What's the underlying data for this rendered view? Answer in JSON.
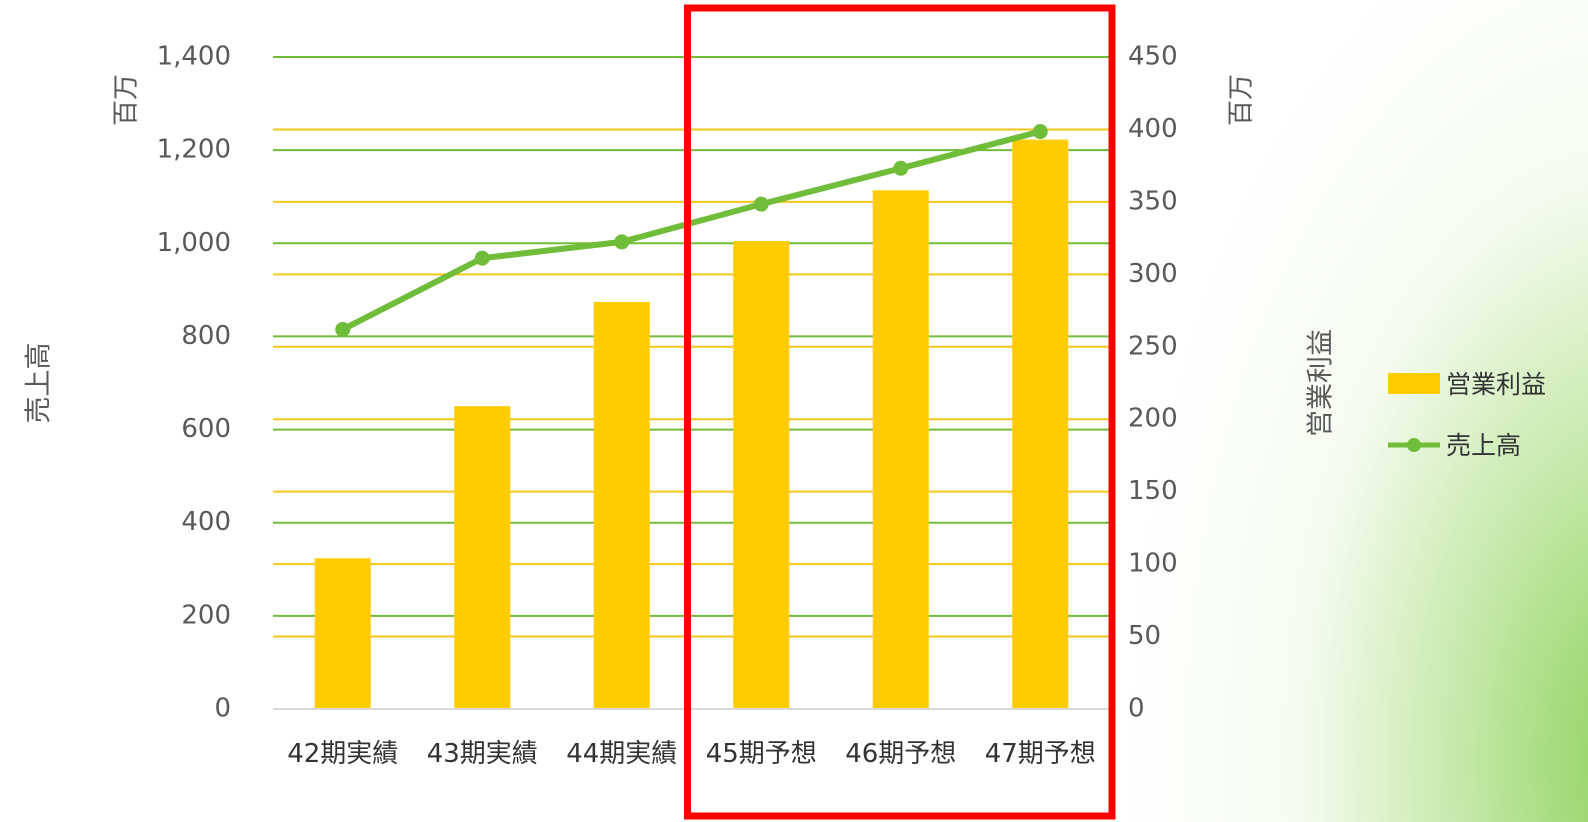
{
  "chart_data": {
    "type": "bar+line",
    "categories": [
      "42期実績",
      "43期実績",
      "44期実績",
      "45期予想",
      "46期予想",
      "47期予想"
    ],
    "series": [
      {
        "name": "営業利益",
        "type": "bar",
        "axis": "right",
        "values": [
          104,
          209,
          281,
          323,
          358,
          393
        ],
        "color": "#FFCC00"
      },
      {
        "name": "売上高",
        "type": "line",
        "axis": "left",
        "values": [
          815,
          968,
          1003,
          1084,
          1161,
          1240
        ],
        "color": "#70BD3A"
      }
    ],
    "y_left": {
      "label": "売上高",
      "unit": "百万",
      "ylim": [
        0,
        1400
      ],
      "ticks": [
        "0",
        "200",
        "400",
        "600",
        "800",
        "1,000",
        "1,200",
        "1,400"
      ],
      "tick_values": [
        0,
        200,
        400,
        600,
        800,
        1000,
        1200,
        1400
      ],
      "grid_color": "#70BD3A"
    },
    "y_right": {
      "label": "営業利益",
      "unit": "百万",
      "ylim": [
        0,
        450
      ],
      "ticks": [
        "0",
        "50",
        "100",
        "150",
        "200",
        "250",
        "300",
        "350",
        "400",
        "450"
      ],
      "tick_values": [
        0,
        50,
        100,
        150,
        200,
        250,
        300,
        350,
        400,
        450
      ],
      "grid_color": "#F5C518"
    },
    "legend": {
      "position": "right",
      "items": [
        "営業利益",
        "売上高"
      ]
    },
    "highlight": {
      "range": [
        "45期予想",
        "47期予想"
      ],
      "color": "#FF0000"
    }
  }
}
